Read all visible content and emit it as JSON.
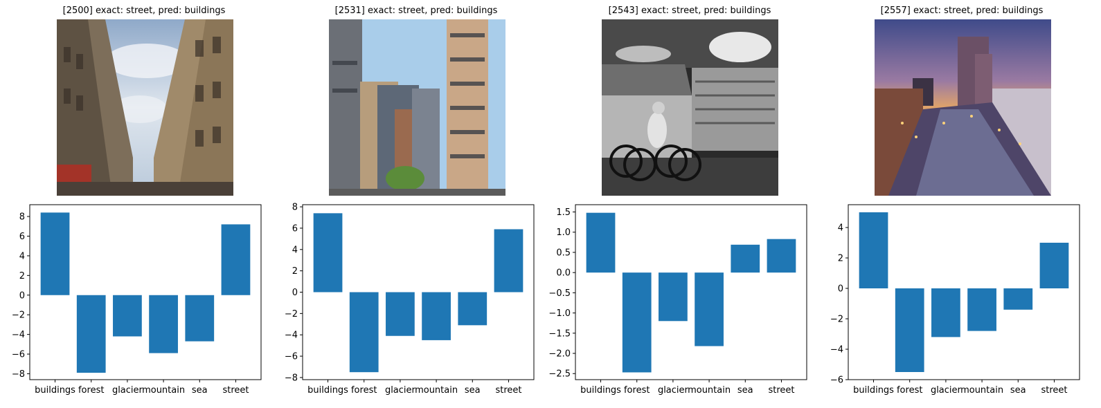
{
  "bar_color": "#1f77b4",
  "panels": [
    {
      "title": "[2500] exact: street, pred: buildings",
      "image_icon": "street-photo-buildings-sky",
      "chart_data": {
        "type": "bar",
        "categories": [
          "buildings",
          "forest",
          "glacier",
          "mountain",
          "sea",
          "street"
        ],
        "values": [
          8.4,
          -7.9,
          -4.2,
          -5.9,
          -4.7,
          7.2
        ],
        "ylim": [
          -8.6,
          9.2
        ],
        "yticks": [
          {
            "v": 8,
            "label": "8"
          },
          {
            "v": 6,
            "label": "6"
          },
          {
            "v": 4,
            "label": "4"
          },
          {
            "v": 2,
            "label": "2"
          },
          {
            "v": 0,
            "label": "0"
          },
          {
            "v": -2,
            "label": "−2"
          },
          {
            "v": -4,
            "label": "−4"
          },
          {
            "v": -6,
            "label": "−6"
          },
          {
            "v": -8,
            "label": "−8"
          }
        ],
        "grid": false
      }
    },
    {
      "title": "[2531] exact: street, pred: buildings",
      "image_icon": "street-photo-office-towers",
      "chart_data": {
        "type": "bar",
        "categories": [
          "buildings",
          "forest",
          "glacier",
          "mountain",
          "sea",
          "street"
        ],
        "values": [
          7.4,
          -7.5,
          -4.1,
          -4.5,
          -3.1,
          5.9
        ],
        "ylim": [
          -8.2,
          8.2
        ],
        "yticks": [
          {
            "v": 8,
            "label": "8"
          },
          {
            "v": 6,
            "label": "6"
          },
          {
            "v": 4,
            "label": "4"
          },
          {
            "v": 2,
            "label": "2"
          },
          {
            "v": 0,
            "label": "0"
          },
          {
            "v": -2,
            "label": "−2"
          },
          {
            "v": -4,
            "label": "−4"
          },
          {
            "v": -6,
            "label": "−6"
          },
          {
            "v": -8,
            "label": "−8"
          }
        ],
        "grid": false
      }
    },
    {
      "title": "[2543] exact: street, pred: buildings",
      "image_icon": "street-photo-cyclist-bw",
      "chart_data": {
        "type": "bar",
        "categories": [
          "buildings",
          "forest",
          "glacier",
          "mountain",
          "sea",
          "street"
        ],
        "values": [
          1.48,
          -2.47,
          -1.2,
          -1.82,
          0.69,
          0.83
        ],
        "ylim": [
          -2.65,
          1.68
        ],
        "yticks": [
          {
            "v": 1.5,
            "label": "1.5"
          },
          {
            "v": 1.0,
            "label": "1.0"
          },
          {
            "v": 0.5,
            "label": "0.5"
          },
          {
            "v": 0.0,
            "label": "0.0"
          },
          {
            "v": -0.5,
            "label": "−0.5"
          },
          {
            "v": -1.0,
            "label": "−1.0"
          },
          {
            "v": -1.5,
            "label": "−1.5"
          },
          {
            "v": -2.0,
            "label": "−2.0"
          },
          {
            "v": -2.5,
            "label": "−2.5"
          }
        ],
        "grid": false
      }
    },
    {
      "title": "[2557] exact: street, pred: buildings",
      "image_icon": "street-photo-city-dusk",
      "chart_data": {
        "type": "bar",
        "categories": [
          "buildings",
          "forest",
          "glacier",
          "mountain",
          "sea",
          "street"
        ],
        "values": [
          5.0,
          -5.5,
          -3.2,
          -2.8,
          -1.4,
          3.0
        ],
        "ylim": [
          -6.0,
          5.5
        ],
        "yticks": [
          {
            "v": 4,
            "label": "4"
          },
          {
            "v": 2,
            "label": "2"
          },
          {
            "v": 0,
            "label": "0"
          },
          {
            "v": -2,
            "label": "−2"
          },
          {
            "v": -4,
            "label": "−4"
          },
          {
            "v": -6,
            "label": "−6"
          }
        ],
        "grid": false
      }
    }
  ]
}
